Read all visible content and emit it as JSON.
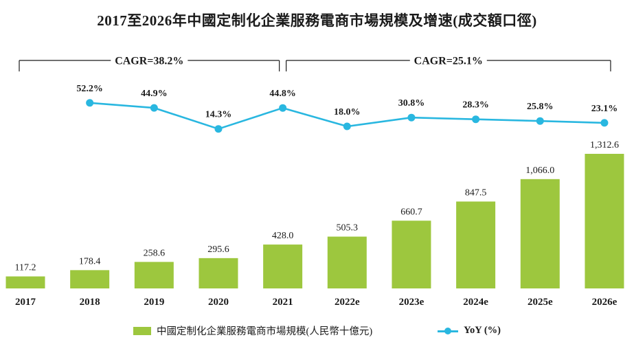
{
  "title": "2017至2026年中國定制化企業服務電商市場規模及增速(成交額口徑)",
  "chart_data": {
    "type": "bar",
    "title": "2017至2026年中國定制化企業服務電商市場規模及增速(成交額口徑)",
    "categories": [
      "2017",
      "2018",
      "2019",
      "2020",
      "2021",
      "2022e",
      "2023e",
      "2024e",
      "2025e",
      "2026e"
    ],
    "series": [
      {
        "name": "中國定制化企業服務電商市場規模(人民幣十億元)",
        "type": "bar",
        "color": "#9DC73E",
        "values": [
          117.2,
          178.4,
          258.6,
          295.6,
          428.0,
          505.3,
          660.7,
          847.5,
          1066.0,
          1312.6
        ],
        "labels": [
          "117.2",
          "178.4",
          "258.6",
          "295.6",
          "428.0",
          "505.3",
          "660.7",
          "847.5",
          "1,066.0",
          "1,312.6"
        ]
      },
      {
        "name": "YoY (%)",
        "type": "line",
        "color": "#29B7E0",
        "start_index": 1,
        "values": [
          52.2,
          44.9,
          14.3,
          44.8,
          18.0,
          30.8,
          28.3,
          25.8,
          23.1
        ],
        "labels": [
          "52.2%",
          "44.9%",
          "14.3%",
          "44.8%",
          "18.0%",
          "30.8%",
          "28.3%",
          "25.8%",
          "23.1%"
        ]
      }
    ],
    "annotations": [
      {
        "label": "CAGR=38.2%",
        "from_index": 0,
        "to_index": 4
      },
      {
        "label": "CAGR=25.1%",
        "from_index": 4,
        "to_index": 9
      }
    ],
    "legend_position": "bottom",
    "grid": false,
    "ylim_bars": [
      0,
      1400
    ],
    "axis_line": "none",
    "text_color": "#1a1a1a"
  }
}
